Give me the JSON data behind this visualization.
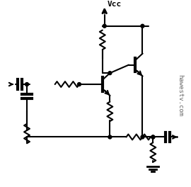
{
  "bg_color": "#ffffff",
  "fg_color": "#000000",
  "title": "",
  "watermark": "hawestv.com",
  "fig_width": 2.7,
  "fig_height": 2.64,
  "dpi": 100
}
